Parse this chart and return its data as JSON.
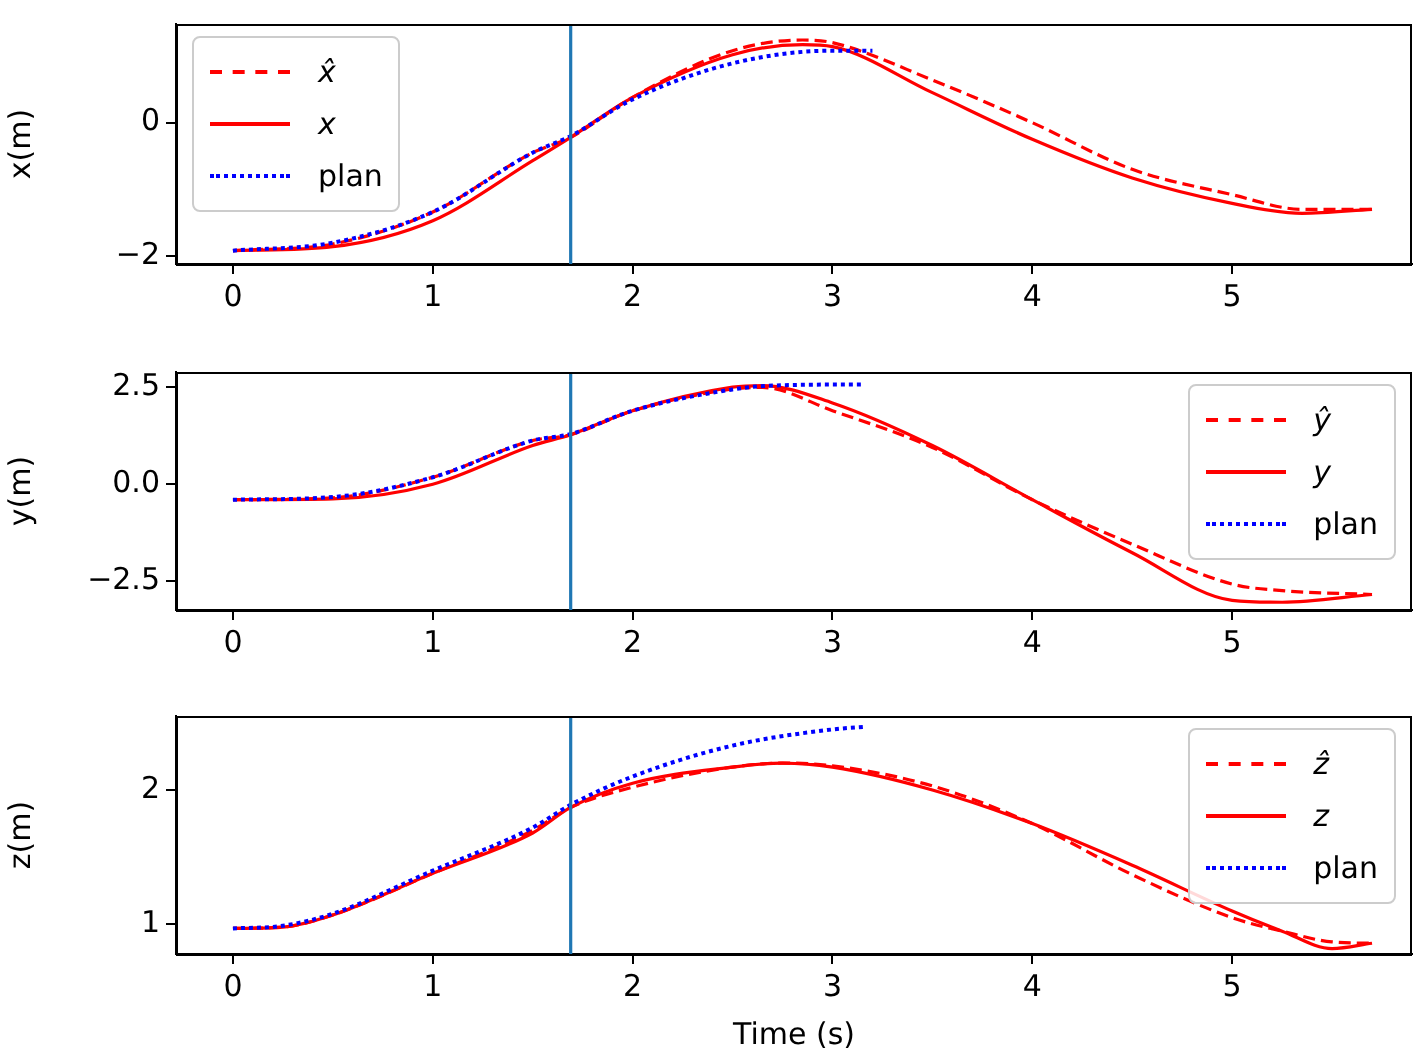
{
  "chart_data": [
    {
      "type": "line",
      "ylabel": "x(m)",
      "xlim": [
        -0.285,
        5.9
      ],
      "ylim": [
        -2.12,
        1.48
      ],
      "xticks": [
        0,
        1,
        2,
        3,
        4,
        5
      ],
      "yticks": [
        {
          "value": -2,
          "label": "−2"
        },
        0
      ],
      "grid": false,
      "legend": "top left",
      "ref_lines": [
        {
          "axis": "x",
          "value": 1.69,
          "color": "#1f77b4"
        }
      ],
      "series": [
        {
          "name": "x̂",
          "color": "#ff0000",
          "line_style": "dashed",
          "x": [
            0,
            0.5,
            1,
            1.5,
            1.69,
            2,
            2.5,
            2.85,
            3,
            3.5,
            4,
            4.5,
            5,
            5.35,
            5.7
          ],
          "values": [
            -1.92,
            -1.82,
            -1.34,
            -0.45,
            -0.22,
            0.38,
            1.08,
            1.24,
            1.2,
            0.64,
            0,
            -0.7,
            -1.08,
            -1.3,
            -1.3
          ]
        },
        {
          "name": "x",
          "color": "#ff0000",
          "line_style": "solid",
          "x": [
            0,
            0.5,
            1,
            1.5,
            1.69,
            2,
            2.5,
            2.85,
            3,
            3.5,
            4,
            4.5,
            5,
            5.35,
            5.7
          ],
          "values": [
            -1.92,
            -1.86,
            -1.47,
            -0.57,
            -0.22,
            0.38,
            1.02,
            1.17,
            1.14,
            0.45,
            -0.25,
            -0.83,
            -1.21,
            -1.36,
            -1.3
          ]
        },
        {
          "name": "plan",
          "color": "#0000ff",
          "line_style": "dotted",
          "x": [
            0,
            0.5,
            1,
            1.5,
            1.69,
            2,
            2.5,
            3,
            3.2
          ],
          "values": [
            -1.92,
            -1.8,
            -1.34,
            -0.45,
            -0.2,
            0.35,
            0.89,
            1.08,
            1.08
          ]
        }
      ]
    },
    {
      "type": "line",
      "ylabel": "y(m)",
      "xlim": [
        -0.285,
        5.9
      ],
      "ylim": [
        -3.25,
        2.9
      ],
      "xticks": [
        0,
        1,
        2,
        3,
        4,
        5
      ],
      "yticks": [
        {
          "value": -2.5,
          "label": "−2.5"
        },
        {
          "value": 0,
          "label": "0.0"
        },
        {
          "value": 2.5,
          "label": "2.5"
        }
      ],
      "grid": false,
      "legend": "top right",
      "ref_lines": [
        {
          "axis": "x",
          "value": 1.69,
          "color": "#1f77b4"
        }
      ],
      "series": [
        {
          "name": "ŷ",
          "color": "#ff0000",
          "line_style": "dashed",
          "x": [
            0,
            0.5,
            1,
            1.5,
            1.69,
            2,
            2.5,
            2.65,
            3,
            3.5,
            4,
            4.5,
            5,
            5.25,
            5.7
          ],
          "values": [
            -0.4,
            -0.35,
            0.18,
            1.13,
            1.28,
            1.9,
            2.46,
            2.5,
            1.9,
            0.95,
            -0.4,
            -1.55,
            -2.58,
            -2.75,
            -2.85
          ]
        },
        {
          "name": "y",
          "color": "#ff0000",
          "line_style": "solid",
          "x": [
            0,
            0.5,
            1,
            1.5,
            1.69,
            2,
            2.5,
            2.65,
            3,
            3.5,
            4,
            4.5,
            5,
            5.25,
            5.7
          ],
          "values": [
            -0.4,
            -0.38,
            0.0,
            1.0,
            1.28,
            1.9,
            2.51,
            2.55,
            2.1,
            1.0,
            -0.4,
            -1.77,
            -3.0,
            -3.05,
            -2.85
          ]
        },
        {
          "name": "plan",
          "color": "#0000ff",
          "line_style": "dotted",
          "x": [
            0,
            0.5,
            1,
            1.5,
            1.69,
            2,
            2.5,
            2.7,
            3.15
          ],
          "values": [
            -0.4,
            -0.33,
            0.18,
            1.13,
            1.3,
            1.9,
            2.45,
            2.55,
            2.58
          ]
        }
      ]
    },
    {
      "type": "line",
      "xlabel": "Time (s)",
      "ylabel": "z(m)",
      "xlim": [
        -0.285,
        5.9
      ],
      "ylim": [
        0.78,
        2.55
      ],
      "xticks": [
        0,
        1,
        2,
        3,
        4,
        5
      ],
      "yticks": [
        1,
        2
      ],
      "grid": false,
      "legend": "top right",
      "ref_lines": [
        {
          "axis": "x",
          "value": 1.69,
          "color": "#1f77b4"
        }
      ],
      "series": [
        {
          "name": "ẑ",
          "color": "#ff0000",
          "line_style": "dashed",
          "x": [
            0,
            0.25,
            0.5,
            1,
            1.5,
            1.69,
            2,
            2.5,
            2.75,
            3,
            3.5,
            4,
            4.5,
            5,
            5.25,
            5.5,
            5.7
          ],
          "values": [
            0.97,
            0.98,
            1.07,
            1.38,
            1.7,
            1.87,
            2.02,
            2.17,
            2.2,
            2.18,
            2.03,
            1.75,
            1.37,
            1.05,
            0.95,
            0.87,
            0.86
          ]
        },
        {
          "name": "z",
          "color": "#ff0000",
          "line_style": "solid",
          "x": [
            0,
            0.25,
            0.5,
            1,
            1.5,
            1.69,
            2,
            2.5,
            2.75,
            3,
            3.5,
            4,
            4.5,
            5,
            5.25,
            5.5,
            5.7
          ],
          "values": [
            0.97,
            0.98,
            1.07,
            1.38,
            1.68,
            1.87,
            2.05,
            2.17,
            2.2,
            2.17,
            2.0,
            1.75,
            1.44,
            1.1,
            0.95,
            0.82,
            0.86
          ]
        },
        {
          "name": "plan",
          "color": "#0000ff",
          "line_style": "dotted",
          "x": [
            0,
            0.25,
            0.5,
            1,
            1.5,
            1.69,
            2,
            2.5,
            3,
            3.17
          ],
          "values": [
            0.97,
            0.99,
            1.08,
            1.4,
            1.72,
            1.89,
            2.1,
            2.33,
            2.45,
            2.47
          ]
        }
      ]
    }
  ]
}
